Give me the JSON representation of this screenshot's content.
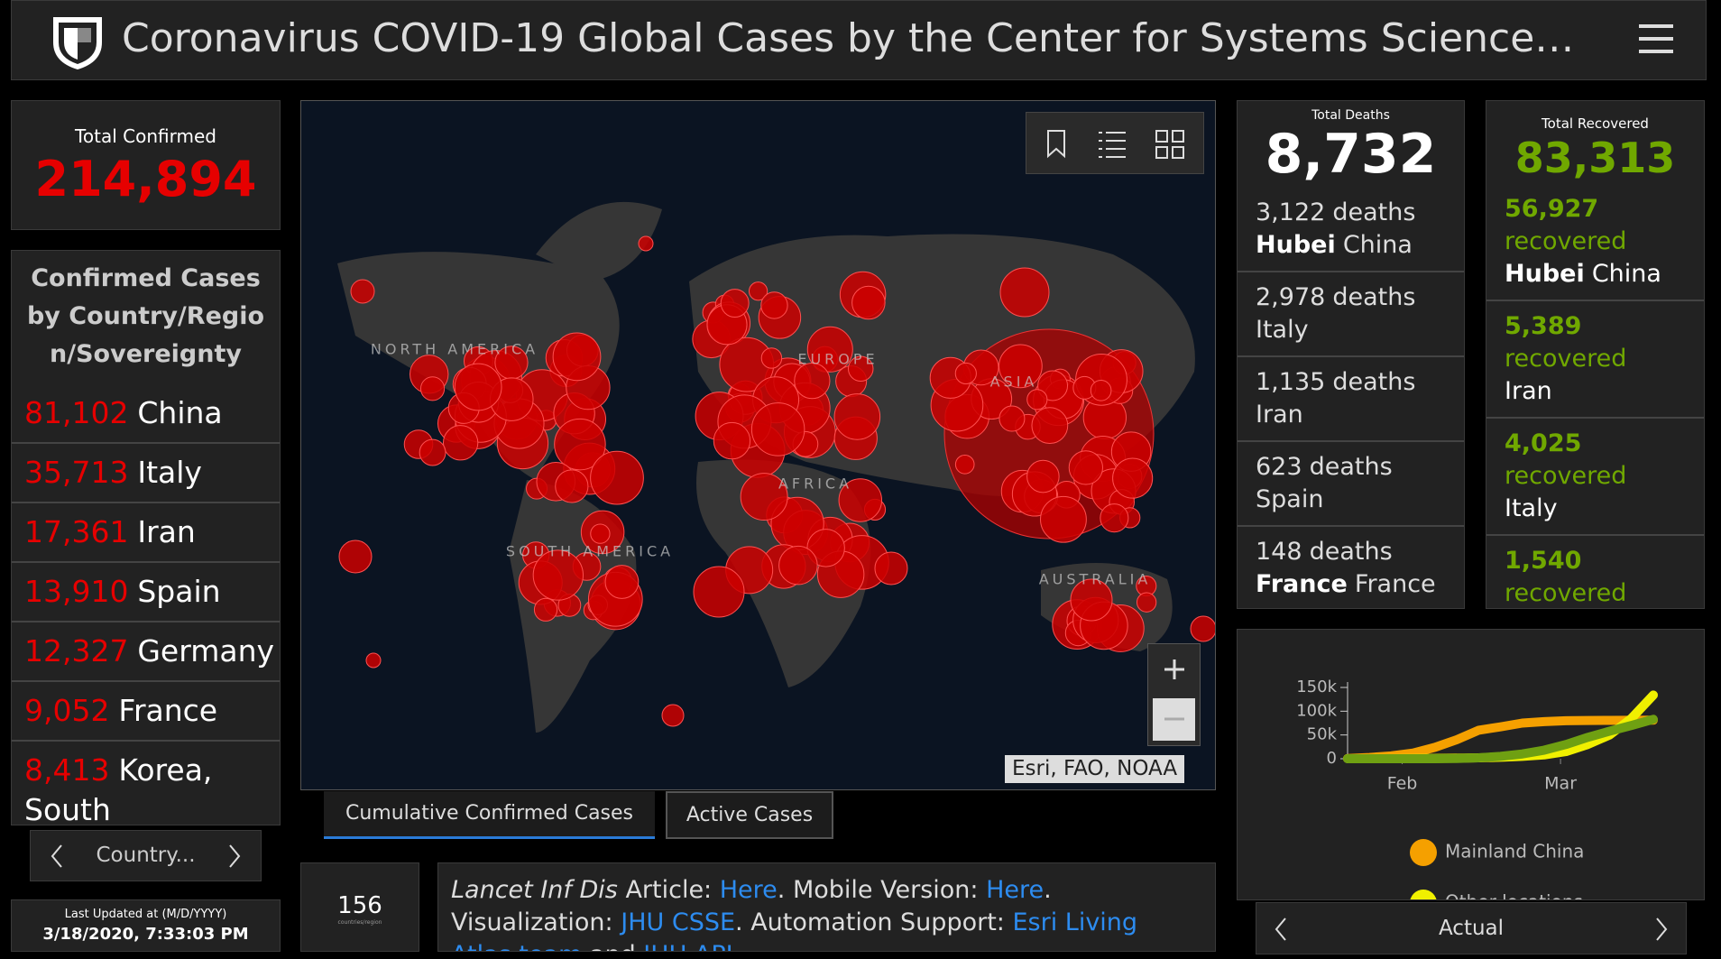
{
  "header": {
    "title": "Coronavirus COVID-19 Global Cases by the Center for Systems Science…"
  },
  "total_confirmed": {
    "label": "Total Confirmed",
    "value": "214,894"
  },
  "confirmed_list": {
    "title": "Confirmed Cases by Country/Region/Sovereignty",
    "rows": [
      {
        "count": "81,102",
        "name": "China"
      },
      {
        "count": "35,713",
        "name": "Italy"
      },
      {
        "count": "17,361",
        "name": "Iran"
      },
      {
        "count": "13,910",
        "name": "Spain"
      },
      {
        "count": "12,327",
        "name": "Germany"
      },
      {
        "count": "9,052",
        "name": "France"
      },
      {
        "count": "8,413",
        "name": "Korea, South"
      }
    ]
  },
  "country_nav": {
    "label": "Country..."
  },
  "last_updated": {
    "label": "Last Updated at (M/D/YYYY)",
    "value": "3/18/2020, 7:33:03 PM"
  },
  "map": {
    "region_labels": [
      "NORTH AMERICA",
      "EUROPE",
      "ASIA",
      "AFRICA",
      "SOUTH AMERICA",
      "AUSTRALIA"
    ],
    "attribution": "Esri, FAO, NOAA"
  },
  "tabs": [
    "Cumulative Confirmed Cases",
    "Active Cases"
  ],
  "country_count": {
    "value": "156",
    "label": "countries/region"
  },
  "info": [
    {
      "text": "Lancet Inf Dis",
      "style": "italic"
    },
    {
      "text": " Article: "
    },
    {
      "text": "Here",
      "link": true
    },
    {
      "text": ". Mobile Version: "
    },
    {
      "text": "Here",
      "link": true
    },
    {
      "text": ". Visualization: "
    },
    {
      "text": "JHU CSSE",
      "link": true
    },
    {
      "text": ". Automation Support: "
    },
    {
      "text": "Esri Living Atlas team",
      "link": true
    },
    {
      "text": " and "
    },
    {
      "text": "JHU APL",
      "link": true
    }
  ],
  "deaths": {
    "label": "Total Deaths",
    "value": "8,732",
    "rows": [
      {
        "count": "3,122",
        "unit": "deaths",
        "region": "Hubei",
        "country": "China"
      },
      {
        "count": "2,978",
        "unit": "deaths",
        "country": "Italy"
      },
      {
        "count": "1,135",
        "unit": "deaths",
        "country": "Iran"
      },
      {
        "count": "623",
        "unit": "deaths",
        "country": "Spain"
      },
      {
        "count": "148",
        "unit": "deaths",
        "region": "France",
        "country": "France"
      }
    ]
  },
  "recovered": {
    "label": "Total Recovered",
    "value": "83,313",
    "rows": [
      {
        "count": "56,927",
        "unit": "recovered",
        "region": "Hubei",
        "country": "China"
      },
      {
        "count": "5,389",
        "unit": "recovered",
        "country": "Iran"
      },
      {
        "count": "4,025",
        "unit": "recovered",
        "country": "Italy"
      },
      {
        "count": "1,540",
        "unit": "recovered"
      }
    ]
  },
  "chart_nav": {
    "label": "Actual"
  },
  "chart_data": {
    "type": "line",
    "x": [
      0,
      4,
      8,
      12,
      16,
      20,
      24,
      28,
      32,
      36,
      40,
      44,
      48,
      52,
      56
    ],
    "xlim": [
      0,
      56
    ],
    "xticks": [
      {
        "value": 10,
        "label": "Feb"
      },
      {
        "value": 39,
        "label": "Mar"
      }
    ],
    "ylim": [
      0,
      150000
    ],
    "yticks": [
      0,
      {
        "value": 50000,
        "label": "50k"
      },
      {
        "value": 100000,
        "label": "100k"
      },
      {
        "value": 150000,
        "label": "150k"
      }
    ],
    "series": [
      {
        "name": "Mainland China",
        "color": "#f5a000",
        "values": [
          500,
          2700,
          6000,
          12000,
          24000,
          40000,
          60000,
          67000,
          75000,
          78000,
          80000,
          80500,
          80800,
          81000,
          81100
        ]
      },
      {
        "name": "Other locations",
        "color": "#f0f000",
        "values": [
          0,
          100,
          300,
          500,
          800,
          1200,
          2000,
          3000,
          5000,
          8000,
          15000,
          30000,
          50000,
          85000,
          134000
        ]
      },
      {
        "color": "#6fa012",
        "values": [
          0,
          0,
          0,
          0,
          100,
          500,
          2000,
          5000,
          10000,
          18000,
          30000,
          45000,
          58000,
          70000,
          83000
        ]
      }
    ]
  }
}
